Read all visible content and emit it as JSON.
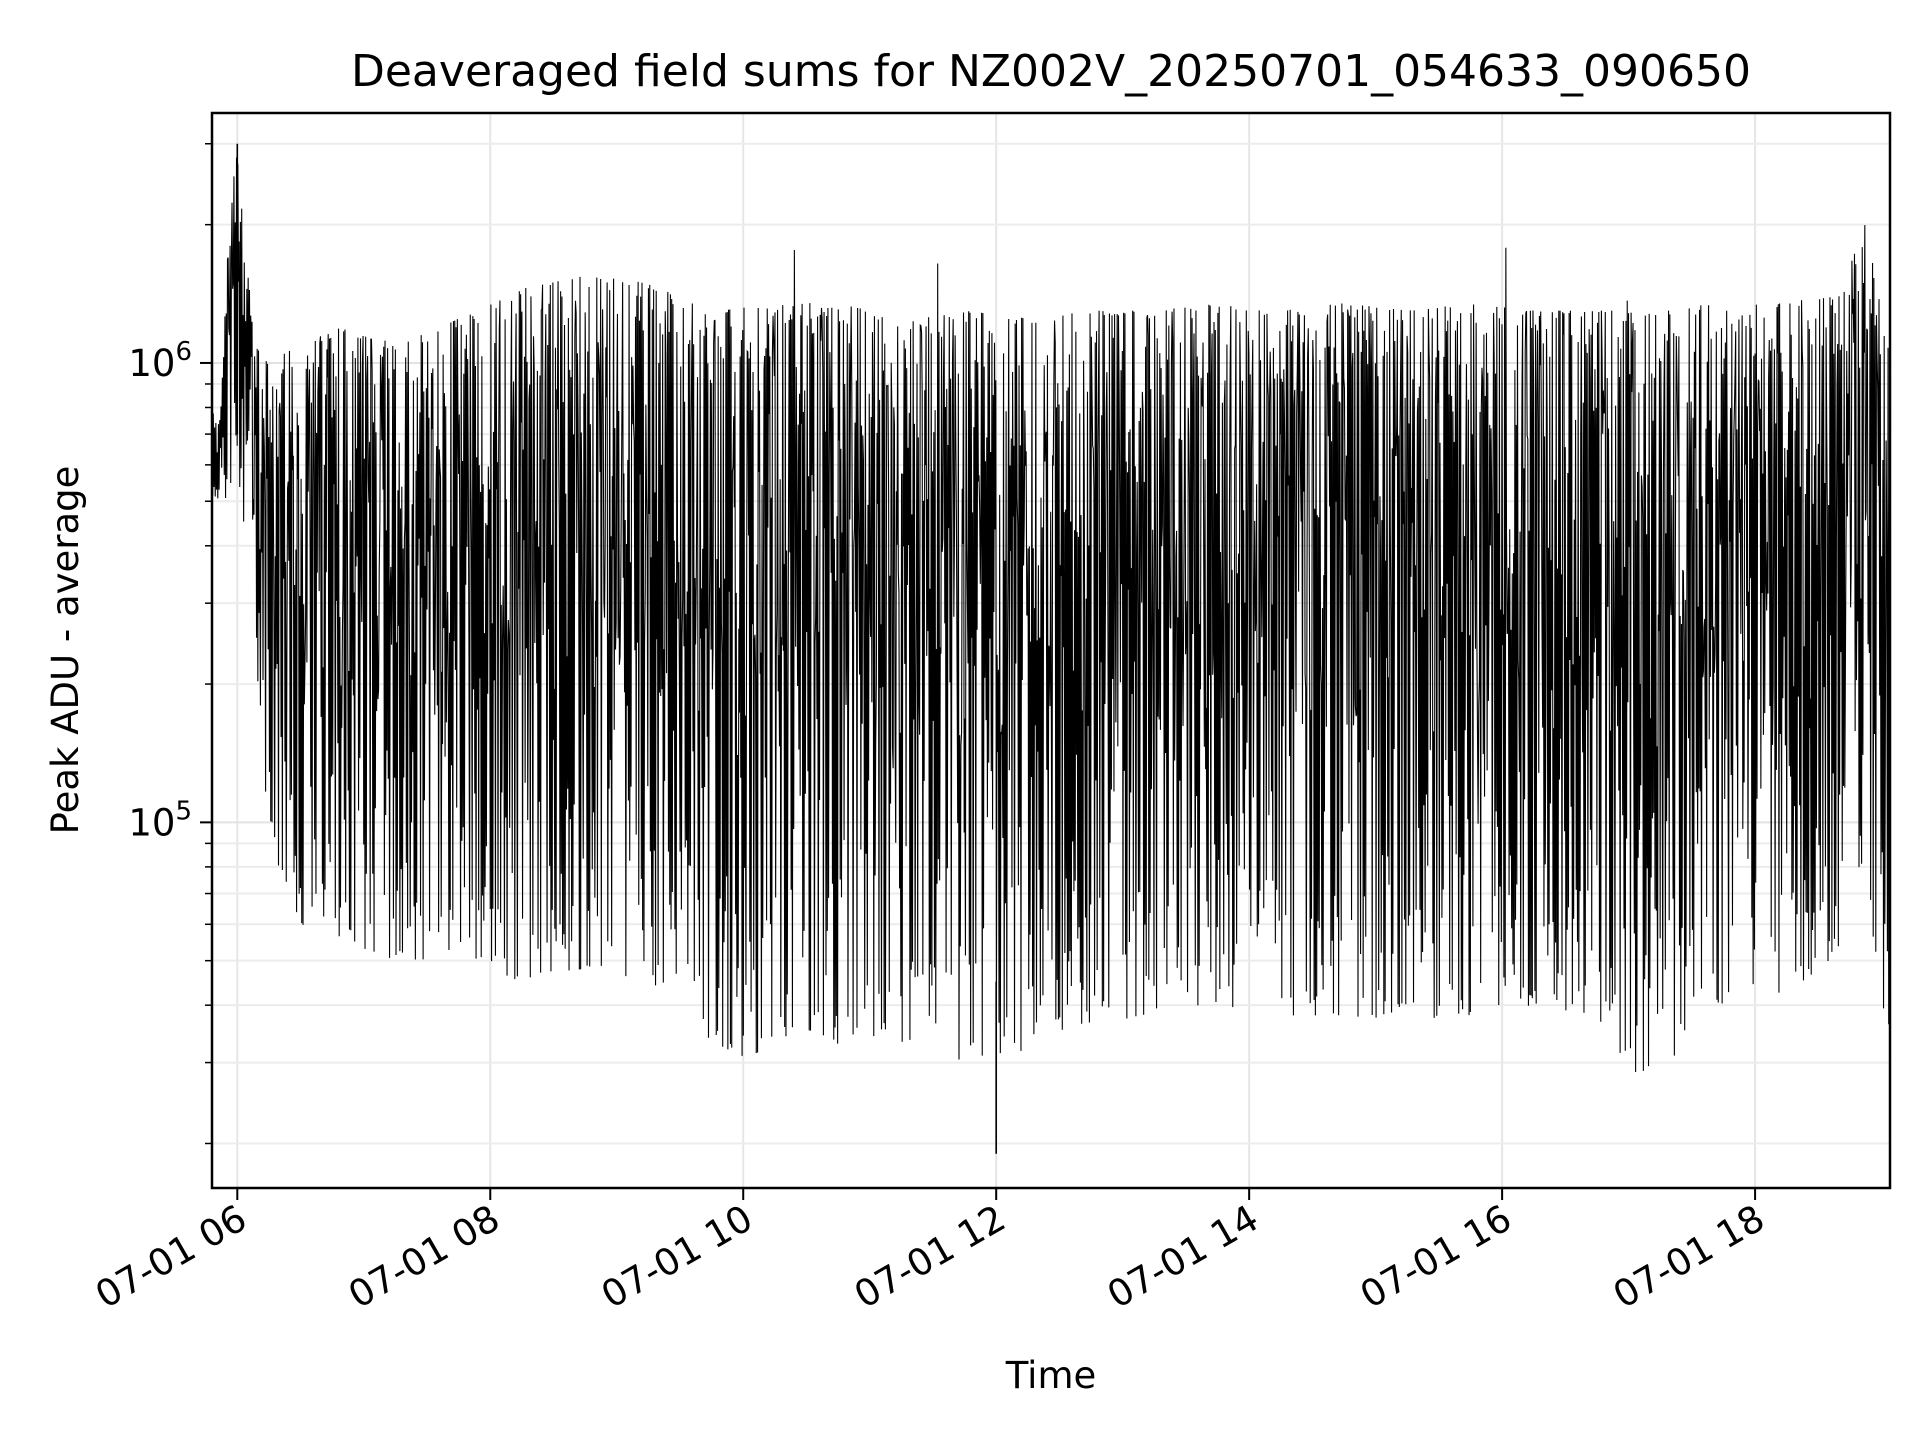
{
  "chart_data": {
    "type": "line",
    "title": "Deaveraged field sums for NZ002V_20250701_054633_090650",
    "xlabel": "Time",
    "ylabel": "Peak ADU - average",
    "x_scale": "time",
    "y_scale": "log",
    "xlim": [
      "2025-07-01T05:48",
      "2025-07-01T19:04"
    ],
    "ylim": [
      16000,
      3500000
    ],
    "x_ticks": [
      {
        "value": "2025-07-01T06:00",
        "label": "07-01 06"
      },
      {
        "value": "2025-07-01T08:00",
        "label": "07-01 08"
      },
      {
        "value": "2025-07-01T10:00",
        "label": "07-01 10"
      },
      {
        "value": "2025-07-01T12:00",
        "label": "07-01 12"
      },
      {
        "value": "2025-07-01T14:00",
        "label": "07-01 14"
      },
      {
        "value": "2025-07-01T16:00",
        "label": "07-01 16"
      },
      {
        "value": "2025-07-01T18:00",
        "label": "07-01 18"
      }
    ],
    "y_ticks": [
      {
        "value": 100000,
        "base": "10",
        "exp": "5"
      },
      {
        "value": 1000000,
        "base": "10",
        "exp": "6"
      }
    ],
    "grid": true,
    "line_color": "#000000",
    "series": [
      {
        "x": [
          "2025-07-01T05:48",
          "2025-07-01T05:52",
          "2025-07-01T05:56",
          "2025-07-01T06:00",
          "2025-07-01T06:08",
          "2025-07-01T06:15",
          "2025-07-01T06:30",
          "2025-07-01T06:50",
          "2025-07-01T07:15",
          "2025-07-01T07:45",
          "2025-07-01T08:15",
          "2025-07-01T08:45",
          "2025-07-01T09:15",
          "2025-07-01T09:35",
          "2025-07-01T09:50",
          "2025-07-01T10:15",
          "2025-07-01T10:45",
          "2025-07-01T11:15",
          "2025-07-01T11:45",
          "2025-07-01T12:15",
          "2025-07-01T12:45",
          "2025-07-01T13:15",
          "2025-07-01T13:45",
          "2025-07-01T14:15",
          "2025-07-01T14:45",
          "2025-07-01T15:15",
          "2025-07-01T15:45",
          "2025-07-01T16:15",
          "2025-07-01T16:45",
          "2025-07-01T17:00",
          "2025-07-01T17:20",
          "2025-07-01T17:40",
          "2025-07-01T18:10",
          "2025-07-01T18:40",
          "2025-07-01T18:52",
          "2025-07-01T19:00",
          "2025-07-01T19:04"
        ],
        "y_high": [
          800000,
          750000,
          2000000,
          3000000,
          1100000,
          1000000,
          1100000,
          1200000,
          1100000,
          1250000,
          1450000,
          1550000,
          1500000,
          1350000,
          1300000,
          1350000,
          1350000,
          1250000,
          1300000,
          1250000,
          1300000,
          1300000,
          1350000,
          1300000,
          1350000,
          1300000,
          1350000,
          1300000,
          1300000,
          1300000,
          1300000,
          1350000,
          1350000,
          1400000,
          2000000,
          1400000,
          1000000
        ],
        "y_low": [
          480000,
          520000,
          500000,
          600000,
          250000,
          90000,
          60000,
          55000,
          50000,
          50000,
          45000,
          48000,
          45000,
          40000,
          30000,
          32000,
          33000,
          32000,
          30000,
          32000,
          36000,
          38000,
          40000,
          38000,
          38000,
          37000,
          38000,
          40000,
          38000,
          28000,
          30000,
          40000,
          42000,
          50000,
          80000,
          40000,
          28000
        ],
        "y_min_spike": 19000,
        "y_max_spike": 3000000
      }
    ]
  }
}
